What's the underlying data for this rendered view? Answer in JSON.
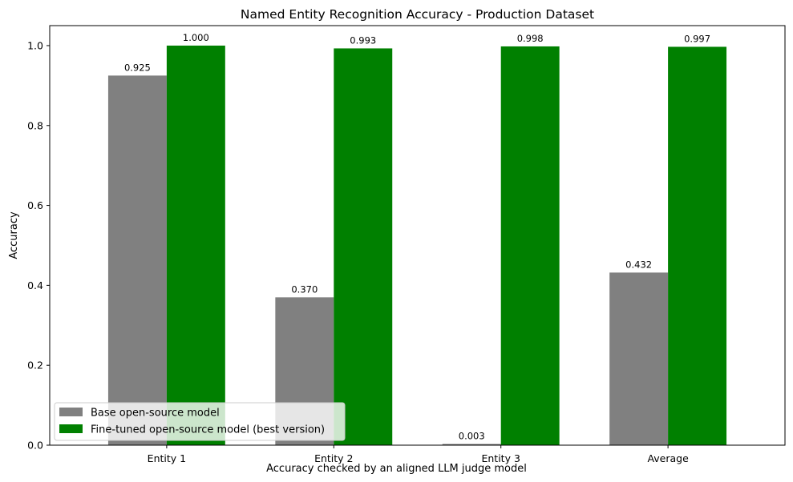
{
  "chart_data": {
    "type": "bar",
    "title": "Named Entity Recognition Accuracy - Production Dataset",
    "xlabel": "Accuracy checked by an aligned LLM judge model",
    "ylabel": "Accuracy",
    "categories": [
      "Entity 1",
      "Entity 2",
      "Entity 3",
      "Average"
    ],
    "series": [
      {
        "name": "Base open-source model",
        "values": [
          0.925,
          0.37,
          0.003,
          0.432
        ],
        "labels": [
          "0.925",
          "0.370",
          "0.003",
          "0.432"
        ],
        "color": "#808080"
      },
      {
        "name": "Fine-tuned open-source model (best version)",
        "values": [
          1.0,
          0.993,
          0.998,
          0.997
        ],
        "labels": [
          "1.000",
          "0.993",
          "0.998",
          "0.997"
        ],
        "color": "#008000"
      }
    ],
    "ylim": [
      0,
      1.05
    ],
    "yticks": [
      0.0,
      0.2,
      0.4,
      0.6,
      0.8,
      1.0
    ],
    "ytick_labels": [
      "0.0",
      "0.2",
      "0.4",
      "0.6",
      "0.8",
      "1.0"
    ],
    "grid": false,
    "legend_position": "lower-left"
  }
}
